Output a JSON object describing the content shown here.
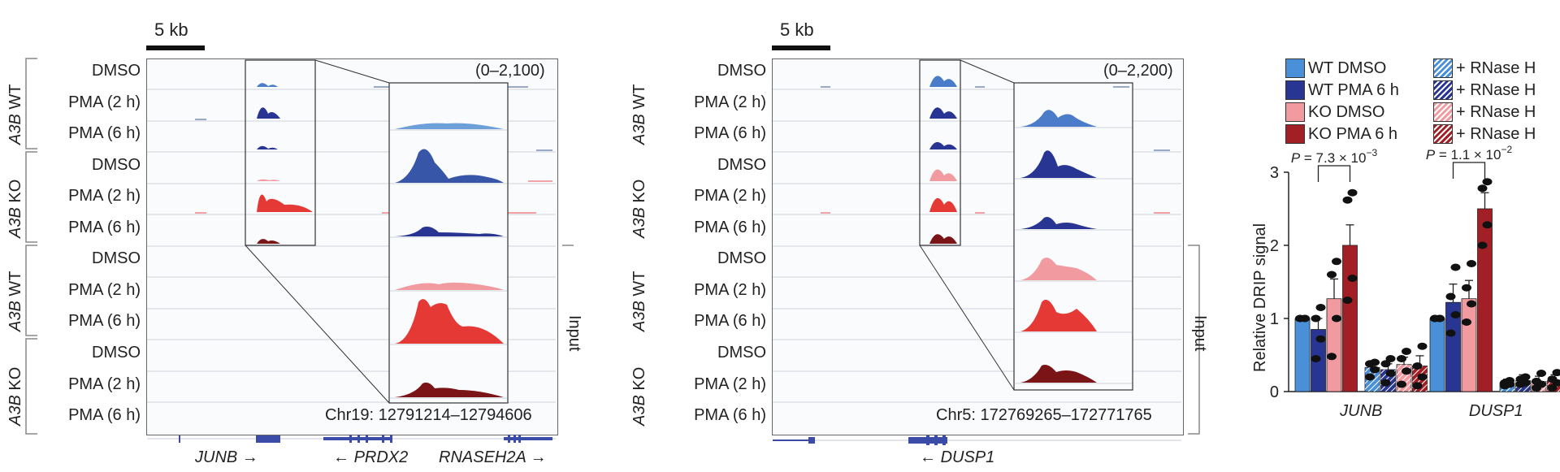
{
  "left_panel": {
    "scale_bar": "5 kb",
    "range": "(0–2,100)",
    "coordinates": "Chr19: 12791214–12794606",
    "genes": [
      {
        "name": "JUNB",
        "arrow": "→"
      },
      {
        "name": "PRDX2",
        "arrow": "←"
      },
      {
        "name": "RNASEH2A",
        "arrow": "→"
      }
    ]
  },
  "right_panel": {
    "scale_bar": "5 kb",
    "range": "(0–2,200)",
    "coordinates": "Chr5: 172769265–172771765",
    "genes": [
      {
        "name": "DUSP1",
        "arrow": "←"
      }
    ]
  },
  "groups": [
    {
      "italic": "A3B",
      "rest": " WT"
    },
    {
      "italic": "A3B",
      "rest": " KO"
    },
    {
      "italic": "A3B",
      "rest": " WT"
    },
    {
      "italic": "A3B",
      "rest": " KO"
    }
  ],
  "track_labels": [
    "DMSO",
    "PMA (2 h)",
    "PMA (6 h)",
    "DMSO",
    "PMA (2 h)",
    "PMA (6 h)",
    "DMSO",
    "PMA (2 h)",
    "PMA (6 h)",
    "DMSO",
    "PMA (2 h)",
    "PMA (6 h)"
  ],
  "input_label": "Input",
  "legend": [
    {
      "label": "WT DMSO",
      "color": "#4a90d9",
      "hatch": false
    },
    {
      "label": "WT PMA 6 h",
      "color": "#283593",
      "hatch": false
    },
    {
      "label": "KO DMSO",
      "color": "#f19aa0",
      "hatch": false
    },
    {
      "label": "KO PMA 6 h",
      "color": "#a31f26",
      "hatch": false
    },
    {
      "label": "+ RNase H",
      "color": "#4a90d9",
      "hatch": true
    },
    {
      "label": "+ RNase H",
      "color": "#283593",
      "hatch": true
    },
    {
      "label": "+ RNase H",
      "color": "#f19aa0",
      "hatch": true
    },
    {
      "label": "+ RNase H",
      "color": "#a31f26",
      "hatch": true
    }
  ],
  "chart_data": {
    "type": "bar",
    "ylabel": "Relative DRIP signal",
    "ylim": [
      0,
      3
    ],
    "yticks": [
      "0",
      "1",
      "2",
      "3"
    ],
    "categories": [
      "JUNB",
      "DUSP1"
    ],
    "series": [
      {
        "name": "WT DMSO",
        "values": [
          1.0,
          1.0
        ],
        "errors": [
          0.0,
          0.0
        ]
      },
      {
        "name": "WT PMA 6 h",
        "values": [
          0.85,
          1.22
        ],
        "errors": [
          0.15,
          0.25
        ]
      },
      {
        "name": "KO DMSO",
        "values": [
          1.27,
          1.27
        ],
        "errors": [
          0.27,
          0.25
        ]
      },
      {
        "name": "KO PMA 6 h",
        "values": [
          2.0,
          2.5
        ],
        "errors": [
          0.28,
          0.22
        ]
      },
      {
        "name": "WT DMSO + RNase H",
        "values": [
          0.33,
          0.12
        ],
        "errors": [
          0.05,
          0.05
        ]
      },
      {
        "name": "WT PMA 6 h + RNase H",
        "values": [
          0.3,
          0.15
        ],
        "errors": [
          0.08,
          0.08
        ]
      },
      {
        "name": "KO DMSO + RNase H",
        "values": [
          0.37,
          0.14
        ],
        "errors": [
          0.1,
          0.07
        ]
      },
      {
        "name": "KO PMA 6 h + RNase H",
        "values": [
          0.35,
          0.15
        ],
        "errors": [
          0.14,
          0.08
        ]
      }
    ],
    "points": [
      [
        [
          1.0,
          1.0,
          1.0,
          1.0
        ],
        [
          1.0,
          1.0,
          1.0,
          1.0
        ]
      ],
      [
        [
          0.45,
          0.72,
          1.0,
          1.15
        ],
        [
          0.8,
          1.05,
          1.3,
          1.7
        ]
      ],
      [
        [
          0.48,
          1.0,
          1.6,
          1.78
        ],
        [
          0.95,
          1.2,
          1.42,
          1.75
        ]
      ],
      [
        [
          1.25,
          1.55,
          2.62,
          2.72
        ],
        [
          2.0,
          2.28,
          2.78,
          2.87
        ]
      ],
      [
        [
          0.2,
          0.3,
          0.38,
          0.4
        ],
        [
          0.08,
          0.1,
          0.12,
          0.15
        ]
      ],
      [
        [
          0.12,
          0.25,
          0.38,
          0.45
        ],
        [
          0.1,
          0.12,
          0.17,
          0.2
        ]
      ],
      [
        [
          0.1,
          0.28,
          0.45,
          0.55
        ],
        [
          0.05,
          0.1,
          0.14,
          0.25
        ]
      ],
      [
        [
          0.08,
          0.2,
          0.35,
          0.62
        ],
        [
          0.05,
          0.12,
          0.17,
          0.26
        ]
      ]
    ],
    "annotations": [
      {
        "prefix": "P",
        "text": " = 7.3 × 10",
        "exp": "−3",
        "from": 1,
        "to": 3,
        "category": 0
      },
      {
        "prefix": "P",
        "text": " = 1.1 × 10",
        "exp": "−2",
        "from": 1,
        "to": 3,
        "category": 1
      }
    ]
  }
}
